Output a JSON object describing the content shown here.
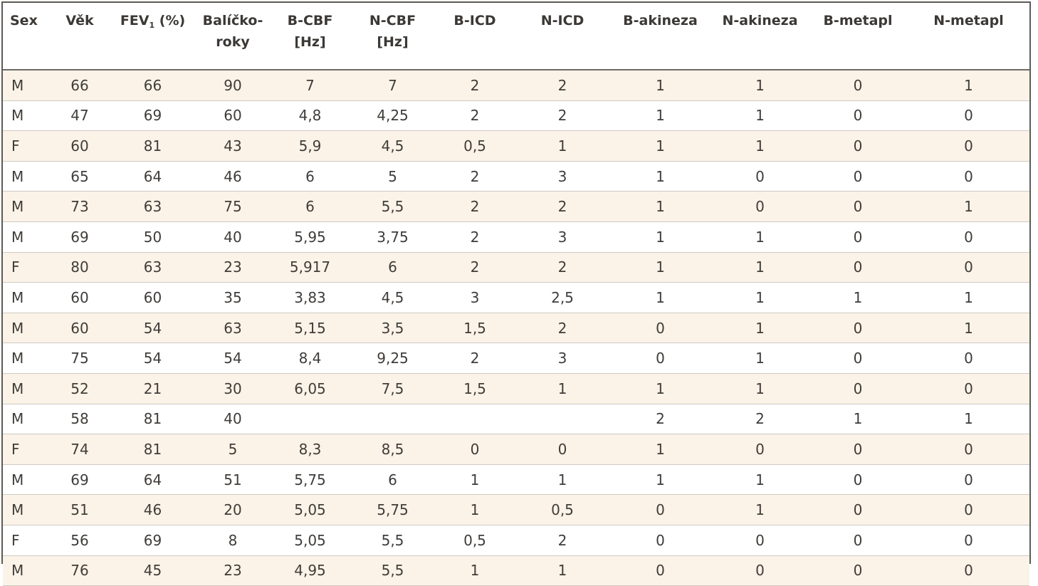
{
  "table": {
    "headers": [
      {
        "text": "Sex"
      },
      {
        "text": "Věk"
      },
      {
        "text_pre": "FEV",
        "sub": "1",
        "text_post": " (%)"
      },
      {
        "line1": "Balíčko-",
        "line2": "roky"
      },
      {
        "line1": "B-CBF",
        "line2": "[Hz]"
      },
      {
        "line1": "N-CBF",
        "line2": "[Hz]"
      },
      {
        "text": "B-ICD"
      },
      {
        "text": "N-ICD"
      },
      {
        "text": "B-akineza"
      },
      {
        "text": "N-akineza"
      },
      {
        "text": "B-metapl"
      },
      {
        "text": "N-metapl"
      }
    ],
    "rows": [
      [
        "M",
        "66",
        "66",
        "90",
        "7",
        "7",
        "2",
        "2",
        "1",
        "1",
        "0",
        "1"
      ],
      [
        "M",
        "47",
        "69",
        "60",
        "4,8",
        "4,25",
        "2",
        "2",
        "1",
        "1",
        "0",
        "0"
      ],
      [
        "F",
        "60",
        "81",
        "43",
        "5,9",
        "4,5",
        "0,5",
        "1",
        "1",
        "1",
        "0",
        "0"
      ],
      [
        "M",
        "65",
        "64",
        "46",
        "6",
        "5",
        "2",
        "3",
        "1",
        "0",
        "0",
        "0"
      ],
      [
        "M",
        "73",
        "63",
        "75",
        "6",
        "5,5",
        "2",
        "2",
        "1",
        "0",
        "0",
        "1"
      ],
      [
        "M",
        "69",
        "50",
        "40",
        "5,95",
        "3,75",
        "2",
        "3",
        "1",
        "1",
        "0",
        "0"
      ],
      [
        "F",
        "80",
        "63",
        "23",
        "5,917",
        "6",
        "2",
        "2",
        "1",
        "1",
        "0",
        "0"
      ],
      [
        "M",
        "60",
        "60",
        "35",
        "3,83",
        "4,5",
        "3",
        "2,5",
        "1",
        "1",
        "1",
        "1"
      ],
      [
        "M",
        "60",
        "54",
        "63",
        "5,15",
        "3,5",
        "1,5",
        "2",
        "0",
        "1",
        "0",
        "1"
      ],
      [
        "M",
        "75",
        "54",
        "54",
        "8,4",
        "9,25",
        "2",
        "3",
        "0",
        "1",
        "0",
        "0"
      ],
      [
        "M",
        "52",
        "21",
        "30",
        "6,05",
        "7,5",
        "1,5",
        "1",
        "1",
        "1",
        "0",
        "0"
      ],
      [
        "M",
        "58",
        "81",
        "40",
        "",
        "",
        "",
        "",
        "2",
        "2",
        "1",
        "1"
      ],
      [
        "F",
        "74",
        "81",
        "5",
        "8,3",
        "8,5",
        "0",
        "0",
        "1",
        "0",
        "0",
        "0"
      ],
      [
        "M",
        "69",
        "64",
        "51",
        "5,75",
        "6",
        "1",
        "1",
        "1",
        "1",
        "0",
        "0"
      ],
      [
        "M",
        "51",
        "46",
        "20",
        "5,05",
        "5,75",
        "1",
        "0,5",
        "0",
        "1",
        "0",
        "0"
      ],
      [
        "F",
        "56",
        "69",
        "8",
        "5,05",
        "5,5",
        "0,5",
        "2",
        "0",
        "0",
        "0",
        "0"
      ],
      [
        "M",
        "76",
        "45",
        "23",
        "4,95",
        "5,5",
        "1",
        "1",
        "0",
        "0",
        "0",
        "0"
      ]
    ]
  }
}
